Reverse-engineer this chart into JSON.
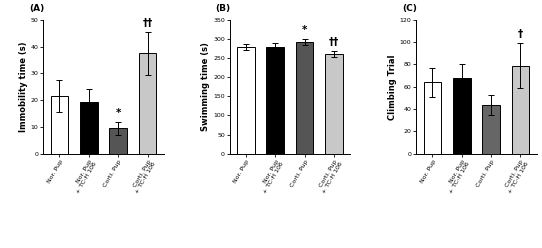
{
  "panels": [
    {
      "label": "A",
      "ylabel": "Immobility time (s)",
      "ylim": [
        0,
        50
      ],
      "yticks": [
        0,
        10,
        20,
        30,
        40,
        50
      ],
      "bars": [
        {
          "value": 21.5,
          "err": 6.0,
          "color": "white",
          "edgecolor": "black"
        },
        {
          "value": 19.5,
          "err": 4.5,
          "color": "black",
          "edgecolor": "black"
        },
        {
          "value": 9.5,
          "err": 2.5,
          "color": "#555555",
          "edgecolor": "black"
        },
        {
          "value": 37.5,
          "err": 8.0,
          "color": "#c8c8c8",
          "edgecolor": "black"
        }
      ],
      "xticklabels": [
        "Nor. Pup",
        "Nor. Pup\n+ TC-H 106",
        "Corti. Pup",
        "Corti. Pup\n+ TC-H 106"
      ],
      "significance": [
        "",
        "",
        "*",
        "††"
      ]
    },
    {
      "label": "B",
      "ylabel": "Swimming time (s)",
      "ylim": [
        0,
        350
      ],
      "yticks": [
        0,
        50,
        100,
        150,
        200,
        250,
        300,
        350
      ],
      "bars": [
        {
          "value": 278,
          "err": 8.0,
          "color": "white",
          "edgecolor": "black"
        },
        {
          "value": 280,
          "err": 10.0,
          "color": "black",
          "edgecolor": "black"
        },
        {
          "value": 291,
          "err": 8.0,
          "color": "#555555",
          "edgecolor": "black"
        },
        {
          "value": 261,
          "err": 8.0,
          "color": "#c8c8c8",
          "edgecolor": "black"
        }
      ],
      "xticklabels": [
        "Nor. Pup",
        "Nor. Pup\n+ TC-H 106",
        "Corti. Pup",
        "Corti. Pup\n+ TC-H 106"
      ],
      "significance": [
        "",
        "",
        "*",
        "††"
      ]
    },
    {
      "label": "C",
      "ylabel": "Climbing Trial",
      "ylim": [
        0,
        120
      ],
      "yticks": [
        0,
        20,
        40,
        60,
        80,
        100,
        120
      ],
      "bars": [
        {
          "value": 64,
          "err": 13.0,
          "color": "white",
          "edgecolor": "black"
        },
        {
          "value": 68,
          "err": 12.0,
          "color": "black",
          "edgecolor": "black"
        },
        {
          "value": 44,
          "err": 9.0,
          "color": "#666666",
          "edgecolor": "black"
        },
        {
          "value": 79,
          "err": 20.0,
          "color": "#c8c8c8",
          "edgecolor": "black"
        }
      ],
      "xticklabels": [
        "Nor. Pup",
        "Nor. Pup\n+ TC-H 106",
        "Corti. Pup",
        "Corti. Pup\n+ TC-H 106"
      ],
      "significance": [
        "",
        "",
        "",
        "†"
      ]
    }
  ],
  "tick_fontsize": 4.5,
  "ylabel_fontsize": 6.0,
  "sig_fontsize": 7.5,
  "bar_width": 0.6,
  "capsize": 2.0,
  "panel_label_fontsize": 6.5
}
